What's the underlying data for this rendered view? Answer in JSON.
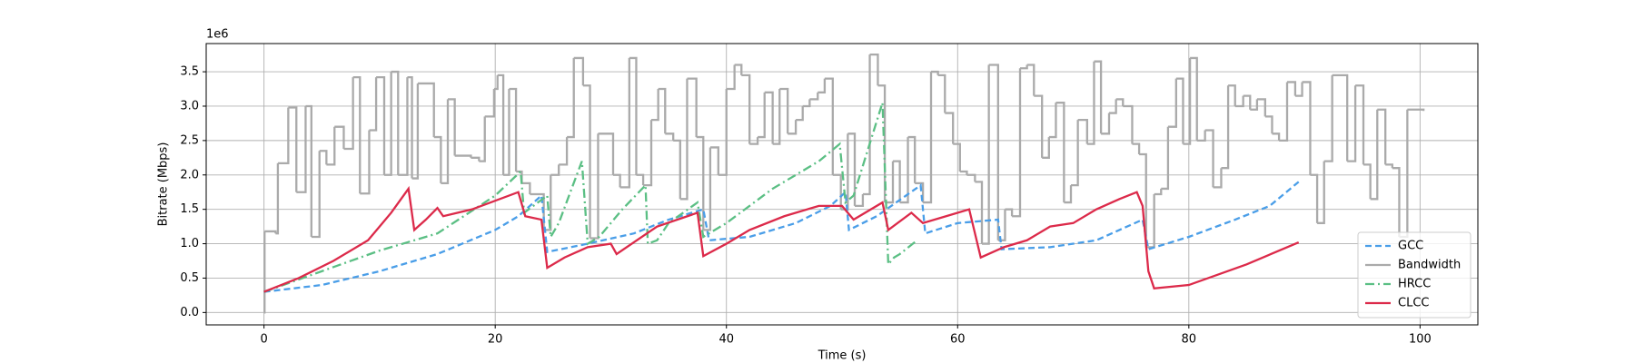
{
  "chart_data": {
    "type": "line",
    "x_label": "Time (s)",
    "y_label": "Bitrate (Mbps)",
    "y_offset_label": "1e6",
    "xlim": [
      -5,
      105
    ],
    "xticks": [
      0,
      20,
      40,
      60,
      80,
      100
    ],
    "ylim": [
      -0.18,
      3.91
    ],
    "yticks": [
      {
        "value": 0,
        "label": "0.0"
      },
      0.5,
      {
        "value": 1,
        "label": "1.0"
      },
      1.5,
      {
        "value": 2,
        "label": "2.0"
      },
      2.5,
      {
        "value": 3,
        "label": "3.0"
      },
      3.5
    ],
    "grid": true,
    "legend": "lower right",
    "series": [
      {
        "name": "GCC",
        "color": "#4a9ee8",
        "linestyle": "dashed",
        "step": false,
        "x": [
          0,
          5,
          10,
          15,
          20,
          22,
          24,
          24.5,
          28,
          32,
          35,
          38,
          38.5,
          42,
          46,
          49,
          50.3,
          50.6,
          53,
          56.8,
          57.2,
          60,
          63.5,
          63.8,
          68,
          72,
          76,
          76.5,
          80,
          84,
          87,
          89.5
        ],
        "values": [
          0.3,
          0.4,
          0.6,
          0.85,
          1.2,
          1.4,
          1.7,
          0.88,
          1.0,
          1.15,
          1.35,
          1.5,
          1.05,
          1.1,
          1.3,
          1.55,
          1.75,
          1.2,
          1.4,
          1.85,
          1.15,
          1.3,
          1.35,
          0.92,
          0.95,
          1.05,
          1.35,
          0.92,
          1.1,
          1.35,
          1.55,
          1.9
        ]
      },
      {
        "name": "Bandwidth",
        "color": "#aaaaaa",
        "linestyle": "solid",
        "step": true,
        "x": [
          0,
          0.05,
          1,
          1.2,
          2.1,
          2.8,
          3.6,
          4.1,
          4.8,
          5.4,
          6.1,
          6.9,
          7.7,
          8.3,
          9.1,
          9.7,
          10.4,
          11,
          11.6,
          12.4,
          12.8,
          13.3,
          14.7,
          15.3,
          15.9,
          16.5,
          17.9,
          18.6,
          19.1,
          19.9,
          20.2,
          20.7,
          21.2,
          21.8,
          22.3,
          23,
          24.2,
          24.8,
          25.5,
          26.2,
          26.8,
          27.6,
          28.2,
          28.9,
          30.2,
          30.8,
          31.6,
          32.2,
          32.8,
          33.5,
          34.1,
          34.7,
          35.4,
          36,
          36.6,
          37.4,
          38,
          38.6,
          39.3,
          40,
          40.7,
          41.3,
          42,
          42.7,
          43.3,
          44,
          44.6,
          45.3,
          46,
          46.6,
          47.2,
          47.9,
          48.5,
          49.2,
          49.9,
          50.5,
          51.1,
          51.8,
          52.4,
          53.1,
          53.7,
          54.4,
          55,
          55.7,
          56.3,
          57,
          57.7,
          58.3,
          58.9,
          59.6,
          60.2,
          60.8,
          61.5,
          62.1,
          62.7,
          63.5,
          64.1,
          64.7,
          65.4,
          66,
          66.6,
          67.3,
          67.9,
          68.5,
          69.2,
          69.8,
          70.4,
          71.2,
          71.8,
          72.4,
          73.1,
          73.7,
          74.3,
          75.1,
          75.7,
          76.3,
          77,
          77.6,
          78.2,
          78.9,
          79.5,
          80.1,
          80.7,
          81.4,
          82.1,
          82.8,
          83.4,
          84,
          84.7,
          85.3,
          85.9,
          86.6,
          87.2,
          87.8,
          88.5,
          89.2,
          89.8,
          90.5,
          91.1,
          91.7,
          92.4,
          93.7,
          94.4,
          95.1,
          95.7,
          96.3,
          97,
          97.6,
          98.2,
          98.9,
          100.3
        ],
        "values": [
          0,
          1.18,
          1.15,
          2.17,
          2.98,
          1.75,
          3.0,
          1.1,
          2.35,
          2.15,
          2.7,
          2.38,
          3.42,
          1.73,
          2.65,
          3.42,
          2.0,
          3.5,
          2.0,
          3.42,
          1.95,
          3.33,
          2.55,
          1.88,
          3.1,
          2.28,
          2.25,
          2.2,
          2.85,
          3.25,
          3.45,
          2.0,
          3.25,
          2.05,
          1.88,
          1.72,
          1.2,
          2.0,
          2.15,
          2.55,
          3.7,
          3.3,
          1.08,
          2.6,
          2.0,
          1.82,
          3.7,
          2.0,
          1.85,
          2.8,
          3.25,
          2.6,
          2.5,
          1.65,
          3.4,
          2.55,
          1.2,
          2.4,
          2.0,
          3.25,
          3.6,
          3.45,
          2.45,
          2.55,
          3.2,
          2.45,
          3.25,
          2.6,
          2.8,
          3.0,
          3.1,
          3.2,
          3.4,
          2.0,
          1.5,
          2.6,
          1.55,
          1.72,
          3.75,
          3.3,
          1.6,
          2.2,
          1.6,
          2.55,
          1.88,
          1.6,
          3.5,
          3.45,
          2.9,
          2.45,
          2.05,
          2.0,
          1.9,
          1.0,
          3.6,
          1.05,
          1.5,
          1.4,
          3.55,
          3.6,
          3.15,
          2.25,
          2.55,
          3.05,
          1.6,
          1.85,
          2.8,
          2.45,
          3.65,
          2.6,
          2.9,
          3.1,
          3.0,
          2.45,
          2.3,
          0.95,
          1.72,
          1.8,
          2.7,
          3.4,
          2.45,
          3.7,
          2.5,
          2.65,
          1.82,
          2.1,
          3.3,
          3.0,
          3.15,
          2.95,
          3.1,
          2.85,
          2.6,
          2.5,
          3.35,
          3.15,
          3.35,
          2.0,
          1.3,
          2.2,
          3.45,
          2.2,
          3.3,
          2.15,
          1.65,
          2.95,
          2.15,
          2.1,
          1.1,
          2.95,
          2.93
        ]
      },
      {
        "name": "HRCC",
        "color": "#5bbf84",
        "linestyle": "dashdot",
        "step": false,
        "x": [
          0,
          5,
          10,
          15,
          20,
          22.2,
          22.5,
          24.5,
          24.8,
          25.5,
          27.5,
          28,
          29,
          31,
          33,
          33.2,
          34,
          35,
          37.5,
          38,
          40,
          44,
          48,
          49.8,
          50.3,
          51,
          53.5,
          54,
          54.5,
          55,
          56.5
        ],
        "values": [
          0.3,
          0.6,
          0.9,
          1.15,
          1.7,
          2.05,
          1.45,
          1.7,
          1.1,
          1.3,
          2.2,
          1.0,
          1.1,
          1.5,
          1.85,
          1.0,
          1.05,
          1.3,
          1.6,
          1.1,
          1.3,
          1.8,
          2.2,
          2.45,
          1.6,
          1.7,
          3.05,
          0.7,
          0.8,
          0.85,
          1.05
        ]
      },
      {
        "name": "CLCC",
        "color": "#dc2a4a",
        "linestyle": "solid",
        "step": false,
        "x": [
          0,
          3,
          6,
          9,
          11,
          12.5,
          13,
          14,
          15,
          15.5,
          18,
          22,
          22.6,
          24,
          24.5,
          26,
          28,
          30,
          30.5,
          34,
          37.5,
          38,
          40,
          42,
          45,
          48,
          50,
          51,
          53.5,
          54,
          56,
          57,
          59,
          61,
          62,
          64,
          66,
          68,
          70,
          72,
          74,
          75.5,
          76,
          76.5,
          77,
          80,
          85,
          89.5
        ],
        "values": [
          0.3,
          0.5,
          0.75,
          1.05,
          1.45,
          1.8,
          1.2,
          1.35,
          1.52,
          1.4,
          1.5,
          1.75,
          1.4,
          1.35,
          0.65,
          0.8,
          0.95,
          1.0,
          0.85,
          1.25,
          1.45,
          0.82,
          1.0,
          1.2,
          1.4,
          1.55,
          1.55,
          1.35,
          1.6,
          1.2,
          1.45,
          1.3,
          1.4,
          1.5,
          0.8,
          0.95,
          1.05,
          1.25,
          1.3,
          1.5,
          1.65,
          1.75,
          1.55,
          0.6,
          0.35,
          0.4,
          0.7,
          1.02
        ]
      }
    ]
  }
}
